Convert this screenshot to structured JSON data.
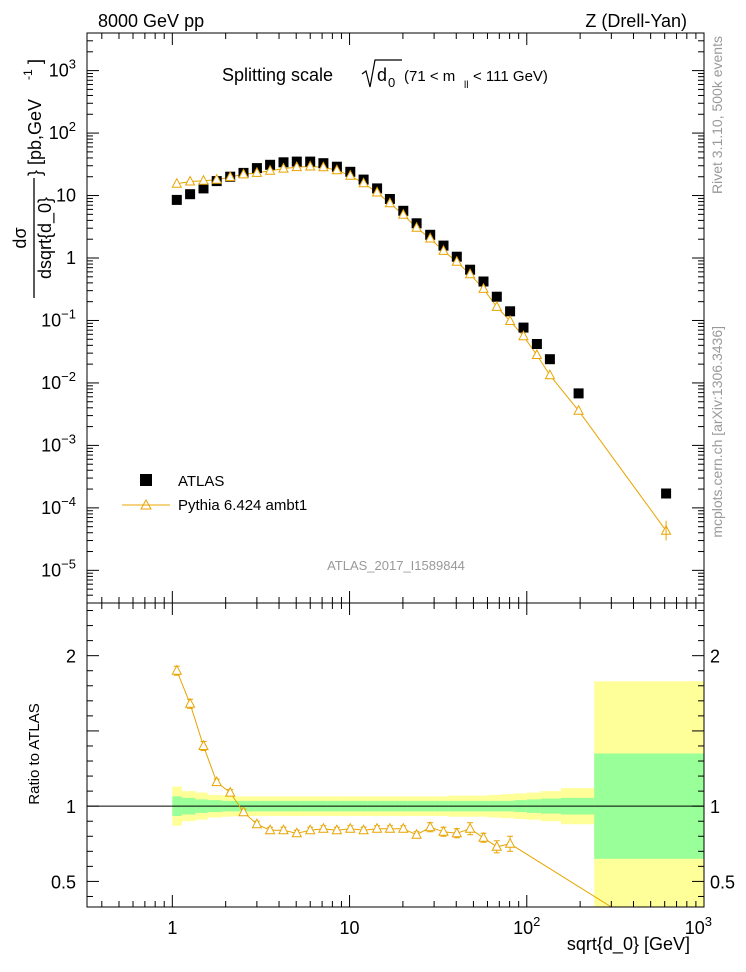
{
  "header": {
    "left": "8000 GeV pp",
    "right": "Z (Drell-Yan)"
  },
  "plot_title": "Splitting scale",
  "title_symbol": "d",
  "title_symbol_sub": "0",
  "title_range_open": "(71 < m",
  "title_range_sub": "ll",
  "title_range_close": " < 111 GeV)",
  "watermark": "ATLAS_2017_I1589844",
  "side_labels": {
    "rivet": "Rivet 3.1.10,  500k events",
    "mcplots": "mcplots.cern.ch [arXiv:1306.3436]"
  },
  "axis_labels": {
    "x": "sqrt{d_0} [GeV]",
    "ratio_y": "Ratio to ATLAS",
    "main_y_num": "dσ",
    "main_y_den": "dsqrt{d_0}",
    "main_y_unit": "} [pb,GeV",
    "main_y_unit_sup": "-1",
    "main_y_close": "]"
  },
  "legend": {
    "atlas": "ATLAS",
    "pythia": "Pythia 6.424 ambt1"
  },
  "colors": {
    "mc": "#E8A400",
    "band_inner": "#99FF99",
    "band_outer": "#FFFF99",
    "data": "#000000"
  },
  "chart_data": {
    "type": "scatter",
    "x_scale": "log",
    "xlim": [
      0.33,
      1000
    ],
    "main": {
      "y_scale": "log",
      "ylim": [
        3e-06,
        4000
      ],
      "y_ticks": [
        {
          "v": 1e-05,
          "base": "10",
          "exp": "−5"
        },
        {
          "v": 0.0001,
          "base": "10",
          "exp": "−4"
        },
        {
          "v": 0.001,
          "base": "10",
          "exp": "−3"
        },
        {
          "v": 0.01,
          "base": "10",
          "exp": "−2"
        },
        {
          "v": 0.1,
          "base": "10",
          "exp": "−1"
        },
        {
          "v": 1,
          "base": "1",
          "exp": ""
        },
        {
          "v": 10,
          "base": "10",
          "exp": ""
        },
        {
          "v": 100,
          "base": "10",
          "exp": "2"
        },
        {
          "v": 1000,
          "base": "10",
          "exp": "3"
        }
      ]
    },
    "ratio": {
      "y_scale": "linear",
      "ylim": [
        0.33,
        2.35
      ],
      "y_ticks": [
        {
          "v": 0.5,
          "label": "0.5"
        },
        {
          "v": 1,
          "label": "1"
        },
        {
          "v": 1.5,
          "label": ""
        },
        {
          "v": 2,
          "label": "2"
        }
      ]
    },
    "x_ticks": [
      {
        "v": 1,
        "base": "1",
        "exp": ""
      },
      {
        "v": 10,
        "base": "10",
        "exp": ""
      },
      {
        "v": 100,
        "base": "10",
        "exp": "2"
      },
      {
        "v": 1000,
        "base": "10",
        "exp": "3"
      }
    ],
    "series": [
      {
        "name": "ATLAS",
        "marker": "square",
        "x": [
          1.06,
          1.26,
          1.5,
          1.78,
          2.12,
          2.52,
          3.0,
          3.56,
          4.24,
          5.04,
          6.0,
          7.12,
          8.48,
          10.1,
          12.0,
          14.3,
          16.9,
          20.1,
          23.9,
          28.5,
          33.9,
          40.3,
          47.9,
          57.0,
          67.7,
          80.5,
          95.8,
          114,
          135,
          196,
          611
        ],
        "y": [
          8.5,
          10.5,
          13,
          17,
          20,
          23,
          27.5,
          31,
          34,
          35,
          35,
          33,
          29,
          24,
          18,
          13,
          8.8,
          5.7,
          3.6,
          2.35,
          1.58,
          1.05,
          0.65,
          0.42,
          0.24,
          0.14,
          0.077,
          0.042,
          0.024,
          0.0068,
          0.00017
        ]
      },
      {
        "name": "Pythia 6.424 ambt1",
        "marker": "open-triangle",
        "x": [
          1.06,
          1.26,
          1.5,
          1.78,
          2.12,
          2.52,
          3.0,
          3.56,
          4.24,
          5.04,
          6.0,
          7.12,
          8.48,
          10.1,
          12.0,
          14.3,
          16.9,
          20.1,
          23.9,
          28.5,
          33.9,
          40.3,
          47.9,
          57.0,
          67.7,
          80.5,
          95.8,
          114,
          135,
          196,
          611
        ],
        "y": [
          15.5,
          16.8,
          17.3,
          17.9,
          19.8,
          21.8,
          23,
          25,
          27,
          28.5,
          29.2,
          28.3,
          25.4,
          20.8,
          15.7,
          11.2,
          7.5,
          4.92,
          3.04,
          2.05,
          1.3,
          0.87,
          0.55,
          0.32,
          0.165,
          0.098,
          0.056,
          0.028,
          0.0133,
          0.0036,
          4.3e-05
        ]
      }
    ],
    "ratio_points": {
      "x": [
        1.06,
        1.26,
        1.5,
        1.78,
        2.12,
        2.52,
        3.0,
        3.56,
        4.24,
        5.04,
        6.0,
        7.12,
        8.48,
        10.1,
        12.0,
        14.3,
        16.9,
        20.1,
        23.9,
        28.5,
        33.9,
        40.3,
        47.9,
        57.0,
        67.7,
        80.5
      ],
      "y": [
        1.9,
        1.68,
        1.4,
        1.16,
        1.09,
        0.96,
        0.88,
        0.84,
        0.84,
        0.82,
        0.84,
        0.85,
        0.84,
        0.85,
        0.84,
        0.85,
        0.85,
        0.85,
        0.81,
        0.86,
        0.83,
        0.82,
        0.85,
        0.79,
        0.73,
        0.75
      ],
      "err": [
        0.03,
        0.03,
        0.03,
        0.02,
        0.02,
        0.02,
        0.02,
        0.02,
        0.02,
        0.02,
        0.02,
        0.02,
        0.02,
        0.02,
        0.02,
        0.02,
        0.02,
        0.02,
        0.02,
        0.03,
        0.03,
        0.03,
        0.04,
        0.03,
        0.04,
        0.05
      ],
      "line_end": [
        300,
        0.33
      ]
    },
    "band_edges": [
      1,
      1.13,
      1.35,
      1.58,
      1.9,
      2.2,
      2.63,
      3.1,
      3.7,
      4.4,
      5.3,
      6.3,
      7.5,
      8.9,
      10.6,
      12.6,
      15.0,
      18.0,
      21.3,
      25.5,
      30.2,
      36.0,
      42.8,
      51.0,
      60.7,
      72.0,
      85.0,
      100,
      120,
      156,
      240,
      1000
    ],
    "band_inner": [
      0.065,
      0.055,
      0.045,
      0.04,
      0.035,
      0.035,
      0.035,
      0.035,
      0.035,
      0.035,
      0.035,
      0.035,
      0.035,
      0.035,
      0.035,
      0.035,
      0.035,
      0.035,
      0.035,
      0.035,
      0.035,
      0.035,
      0.035,
      0.035,
      0.035,
      0.035,
      0.04,
      0.045,
      0.05,
      0.055,
      0.35
    ],
    "band_outer": [
      0.13,
      0.1,
      0.09,
      0.075,
      0.07,
      0.065,
      0.065,
      0.065,
      0.065,
      0.065,
      0.065,
      0.065,
      0.065,
      0.065,
      0.065,
      0.065,
      0.065,
      0.065,
      0.065,
      0.065,
      0.065,
      0.07,
      0.07,
      0.07,
      0.075,
      0.08,
      0.085,
      0.09,
      0.1,
      0.12,
      0.83
    ]
  }
}
